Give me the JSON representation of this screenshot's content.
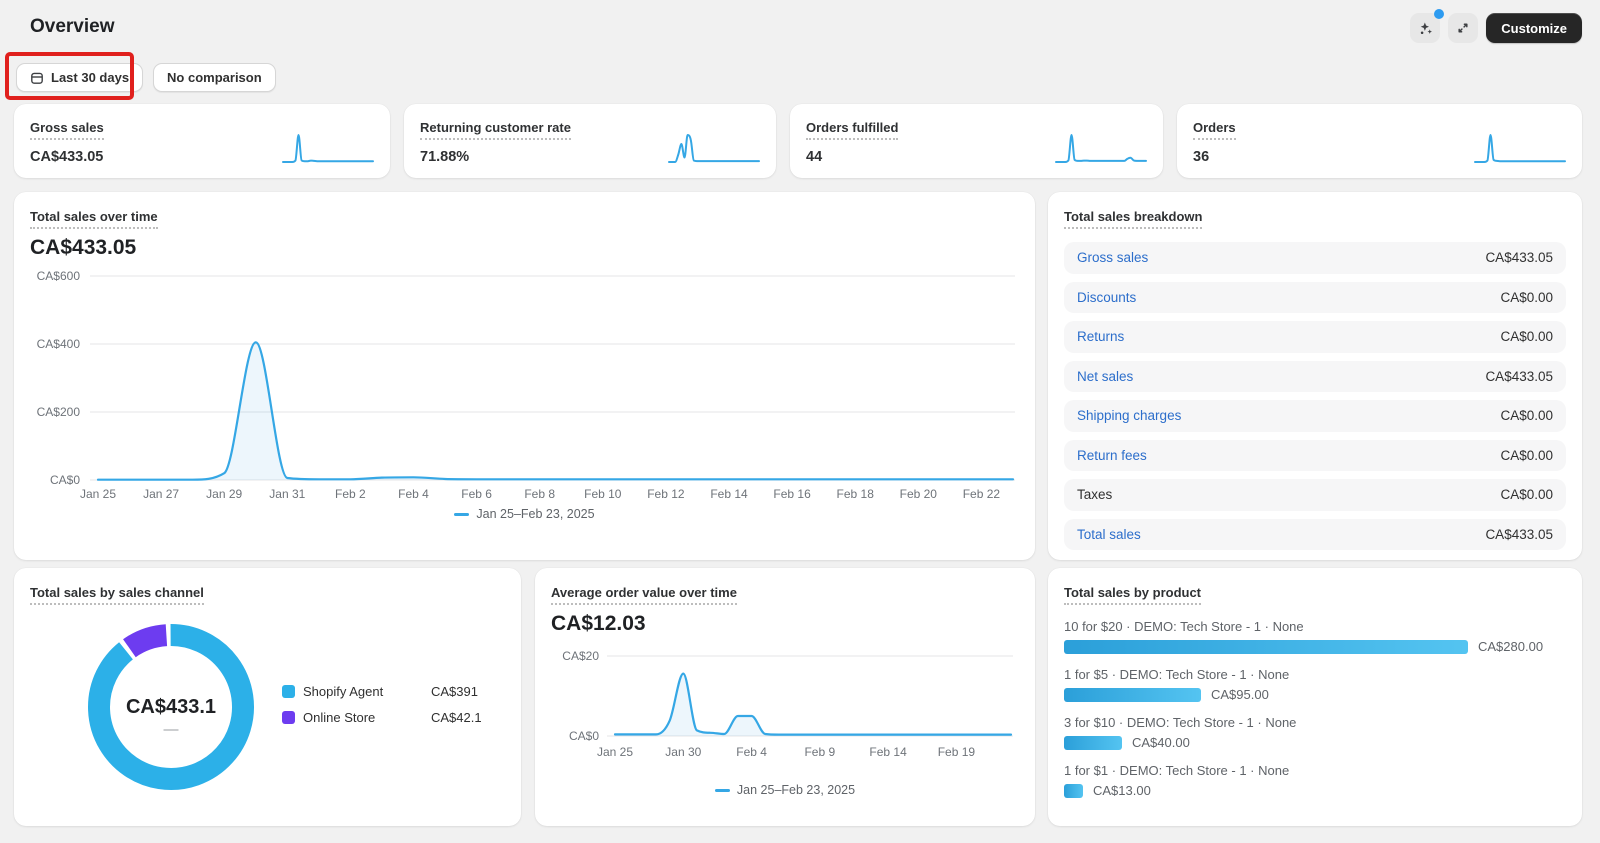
{
  "header": {
    "title": "Overview",
    "customize_label": "Customize"
  },
  "filters": {
    "date_range": "Last 30 days",
    "comparison": "No comparison"
  },
  "colors": {
    "line_blue": "#35a7e5",
    "link_blue": "#2c6ecb",
    "donut_blue": "#2cb0e8",
    "donut_purple": "#6d3cf0",
    "bar_blue": "#2b9fd9",
    "bar_blue_light": "#54c4f1",
    "annotation_red": "#e0201d",
    "customize_bg": "#262626",
    "notification_dot": "#2d9bf0"
  },
  "metrics": [
    {
      "label": "Gross sales",
      "value": "CA$433.05",
      "spark": [
        0,
        0,
        0,
        0,
        5,
        100,
        6,
        3,
        3,
        5,
        4,
        3,
        3,
        3,
        3,
        3,
        3,
        3,
        3,
        3,
        3,
        3,
        3,
        3,
        3,
        3,
        3,
        3,
        3,
        3
      ]
    },
    {
      "label": "Returning customer rate",
      "value": "71.88%",
      "spark": [
        0,
        0,
        0,
        25,
        60,
        15,
        90,
        75,
        5,
        3,
        3,
        3,
        3,
        3,
        3,
        3,
        3,
        3,
        3,
        3,
        3,
        3,
        3,
        3,
        3,
        3,
        3,
        3,
        3,
        3
      ]
    },
    {
      "label": "Orders fulfilled",
      "value": "44",
      "spark": [
        0,
        0,
        0,
        0,
        6,
        100,
        8,
        4,
        4,
        5,
        5,
        4,
        4,
        4,
        4,
        4,
        4,
        4,
        4,
        4,
        4,
        4,
        4,
        12,
        16,
        6,
        4,
        4,
        4,
        4
      ]
    },
    {
      "label": "Orders",
      "value": "36",
      "spark": [
        0,
        0,
        0,
        0,
        5,
        100,
        8,
        4,
        3,
        3,
        3,
        3,
        3,
        3,
        3,
        3,
        3,
        3,
        3,
        3,
        3,
        3,
        3,
        3,
        3,
        3,
        3,
        3,
        3,
        3
      ]
    }
  ],
  "breakdown": {
    "title": "Total sales breakdown",
    "rows": [
      {
        "label": "Gross sales",
        "value": "CA$433.05",
        "link": true
      },
      {
        "label": "Discounts",
        "value": "CA$0.00",
        "link": true
      },
      {
        "label": "Returns",
        "value": "CA$0.00",
        "link": true
      },
      {
        "label": "Net sales",
        "value": "CA$433.05",
        "link": true
      },
      {
        "label": "Shipping charges",
        "value": "CA$0.00",
        "link": true
      },
      {
        "label": "Return fees",
        "value": "CA$0.00",
        "link": true
      },
      {
        "label": "Taxes",
        "value": "CA$0.00",
        "link": false
      },
      {
        "label": "Total sales",
        "value": "CA$433.05",
        "link": true
      }
    ]
  },
  "chart_data": [
    {
      "key": "total_sales",
      "type": "line",
      "title": "Total sales over time",
      "current_value": "CA$433.05",
      "n_points": 30,
      "x_range": "Jan 25–Feb 23, 2025",
      "values": [
        1,
        1,
        1,
        1,
        20,
        405,
        6,
        2,
        2,
        7,
        8,
        3,
        2,
        2,
        2,
        2,
        2,
        2,
        2,
        2,
        2,
        2,
        2,
        2,
        2,
        2,
        2,
        2,
        2,
        2
      ],
      "ylim": [
        0,
        600
      ],
      "y_ticks": [
        {
          "label": "CA$600",
          "value": 600
        },
        {
          "label": "CA$400",
          "value": 400
        },
        {
          "label": "CA$200",
          "value": 200
        },
        {
          "label": "CA$0",
          "value": 0
        }
      ],
      "x_ticks": [
        {
          "label": "Jan 25",
          "i": 0
        },
        {
          "label": "Jan 27",
          "i": 2
        },
        {
          "label": "Jan 29",
          "i": 4
        },
        {
          "label": "Jan 31",
          "i": 6
        },
        {
          "label": "Feb 2",
          "i": 8
        },
        {
          "label": "Feb 4",
          "i": 10
        },
        {
          "label": "Feb 6",
          "i": 12
        },
        {
          "label": "Feb 8",
          "i": 14
        },
        {
          "label": "Feb 10",
          "i": 16
        },
        {
          "label": "Feb 12",
          "i": 18
        },
        {
          "label": "Feb 14",
          "i": 20
        },
        {
          "label": "Feb 16",
          "i": 22
        },
        {
          "label": "Feb 18",
          "i": 24
        },
        {
          "label": "Feb 20",
          "i": 26
        },
        {
          "label": "Feb 22",
          "i": 28
        }
      ],
      "legend": "Jan 25–Feb 23, 2025",
      "grid": true,
      "legend_position": "bottom-center"
    },
    {
      "key": "aov",
      "type": "line",
      "title": "Average order value over time",
      "current_value": "CA$12.03",
      "n_points": 30,
      "x_range": "Jan 25–Feb 23, 2025",
      "values": [
        0.4,
        0.4,
        0.4,
        0.4,
        3.8,
        15.6,
        1.4,
        0.8,
        0.5,
        5,
        5,
        0.5,
        0.35,
        0.35,
        0.35,
        0.35,
        0.35,
        0.35,
        0.35,
        0.35,
        0.35,
        0.35,
        0.35,
        0.35,
        0.35,
        0.35,
        0.35,
        0.35,
        0.35,
        0.35
      ],
      "ylim": [
        0,
        20
      ],
      "y_ticks": [
        {
          "label": "CA$20",
          "value": 20
        },
        {
          "label": "CA$0",
          "value": 0
        }
      ],
      "x_ticks": [
        {
          "label": "Jan 25",
          "i": 0
        },
        {
          "label": "Jan 30",
          "i": 5
        },
        {
          "label": "Feb 4",
          "i": 10
        },
        {
          "label": "Feb 9",
          "i": 15
        },
        {
          "label": "Feb 14",
          "i": 20
        },
        {
          "label": "Feb 19",
          "i": 25
        }
      ],
      "legend": "Jan 25–Feb 23, 2025",
      "grid": true,
      "legend_position": "bottom-center"
    },
    {
      "key": "channel",
      "type": "pie",
      "title": "Total sales by sales channel",
      "center_value": "CA$433.1",
      "center_sub": "—",
      "slices": [
        {
          "label": "Shopify Agent",
          "value": 391,
          "value_label": "CA$391",
          "color": "#2cb0e8"
        },
        {
          "label": "Online Store",
          "value": 42.1,
          "value_label": "CA$42.1",
          "color": "#6d3cf0"
        }
      ],
      "legend_position": "right"
    },
    {
      "key": "products",
      "type": "bar",
      "title": "Total sales by product",
      "max": 280,
      "bars": [
        {
          "label": "10 for $20 · DEMO: Tech Store - 1 · None",
          "value": 280,
          "value_label": "CA$280.00"
        },
        {
          "label": "1 for $5 · DEMO: Tech Store - 1 · None",
          "value": 95,
          "value_label": "CA$95.00"
        },
        {
          "label": "3 for $10 · DEMO: Tech Store - 1 · None",
          "value": 40,
          "value_label": "CA$40.00"
        },
        {
          "label": "1 for $1 · DEMO: Tech Store - 1 · None",
          "value": 13,
          "value_label": "CA$13.00"
        }
      ]
    }
  ]
}
